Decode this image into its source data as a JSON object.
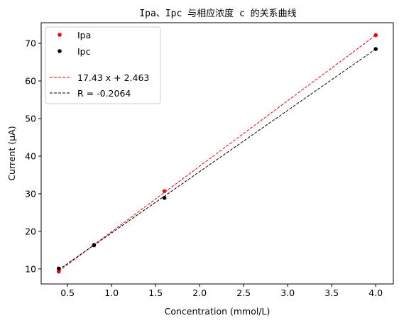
{
  "chart_data": {
    "type": "scatter",
    "title": "Ipa、Ipc 与相应浓度 c 的关系曲线",
    "xlabel": "Concentration (mmol/L)",
    "ylabel": "Current (μA)",
    "xlim": [
      0.2,
      4.2
    ],
    "ylim": [
      6,
      75.5
    ],
    "xticks": [
      0.5,
      1.0,
      1.5,
      2.0,
      2.5,
      3.0,
      3.5,
      4.0
    ],
    "xtick_labels": [
      "0.5",
      "1.0",
      "1.5",
      "2.0",
      "2.5",
      "3.0",
      "3.5",
      "4.0"
    ],
    "yticks": [
      10,
      20,
      30,
      40,
      50,
      60,
      70
    ],
    "ytick_labels": [
      "10",
      "20",
      "30",
      "40",
      "50",
      "60",
      "70"
    ],
    "grid": false,
    "legend_position": "top-left",
    "series": [
      {
        "name": "Ipa",
        "kind": "points",
        "color": "#ff0000",
        "x": [
          0.4,
          0.8,
          1.6,
          4.0
        ],
        "y": [
          9.3,
          16.4,
          30.7,
          72.2
        ]
      },
      {
        "name": "Ipc",
        "kind": "points",
        "color": "#000000",
        "x": [
          0.4,
          0.8,
          1.6,
          4.0
        ],
        "y": [
          10.1,
          16.3,
          28.9,
          68.5
        ]
      },
      {
        "name": "17.43 x + 2.463",
        "kind": "line",
        "color": "#ff0000",
        "dash": "dashed",
        "x": [
          0.4,
          4.0
        ],
        "y": [
          9.435,
          72.183
        ]
      },
      {
        "name": "R = -0.2064",
        "kind": "line",
        "color": "#000000",
        "dash": "dashed",
        "x": [
          0.4,
          4.0
        ],
        "y": [
          9.8,
          68.5
        ]
      }
    ],
    "legend": [
      {
        "label": "Ipa",
        "kind": "point",
        "color": "#ff0000"
      },
      {
        "label": "Ipc",
        "kind": "point",
        "color": "#000000"
      },
      {
        "label": "",
        "kind": "blank"
      },
      {
        "label": "17.43 x + 2.463",
        "kind": "line",
        "color": "#ff0000"
      },
      {
        "label": "R = -0.2064",
        "kind": "line",
        "color": "#000000"
      }
    ]
  }
}
